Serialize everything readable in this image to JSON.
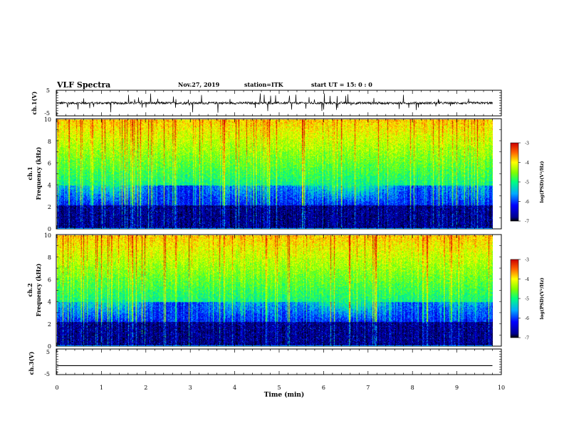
{
  "header": {
    "title": "VLF Spectra",
    "date": "Nov.27, 2019",
    "station": "station=ITK",
    "start": "start  UT  =   15: 0   : 0"
  },
  "chart_data": [
    {
      "type": "line",
      "name": "ch1-waveform",
      "ylabel": "ch.1(V)",
      "ylim": [
        -5,
        5
      ],
      "yticks": [
        "5",
        "-5"
      ],
      "baseline": 0,
      "xlim": [
        0,
        10
      ]
    },
    {
      "type": "heatmap",
      "name": "ch1-spectrogram",
      "ylabel": "ch.1\nFrequency  (kHz)",
      "ylim": [
        0,
        10
      ],
      "yticks": [
        "0",
        "2",
        "4",
        "6",
        "8",
        "10"
      ],
      "xlim": [
        0,
        10
      ],
      "colorbar": {
        "label": "log(PSD)(V²/Hz)",
        "range": [
          -7,
          -3
        ],
        "ticks": [
          "-3",
          "-4",
          "-5",
          "-6",
          "-7"
        ]
      }
    },
    {
      "type": "heatmap",
      "name": "ch2-spectrogram",
      "ylabel": "ch.2\nFrequency  (kHz)",
      "ylim": [
        0,
        10
      ],
      "yticks": [
        "0",
        "2",
        "4",
        "6",
        "8",
        "10"
      ],
      "xlim": [
        0,
        10
      ],
      "colorbar": {
        "label": "log(PSD)(V²/Hz)",
        "range": [
          -7,
          -3
        ],
        "ticks": [
          "-3",
          "-4",
          "-5",
          "-6",
          "-7"
        ]
      }
    },
    {
      "type": "line",
      "name": "ch3-waveform",
      "ylabel": "ch.3(V)",
      "ylim": [
        -5,
        5
      ],
      "yticks": [
        "5",
        "-5"
      ],
      "baseline": -1.5,
      "xlim": [
        0,
        10
      ]
    }
  ],
  "xaxis": {
    "label": "Time  (min)",
    "ticks": [
      "0",
      "1",
      "2",
      "3",
      "4",
      "5",
      "6",
      "7",
      "8",
      "9",
      "10"
    ],
    "data_end": 9.8
  },
  "colors": {
    "background": "#000000",
    "trace": "#000000"
  }
}
